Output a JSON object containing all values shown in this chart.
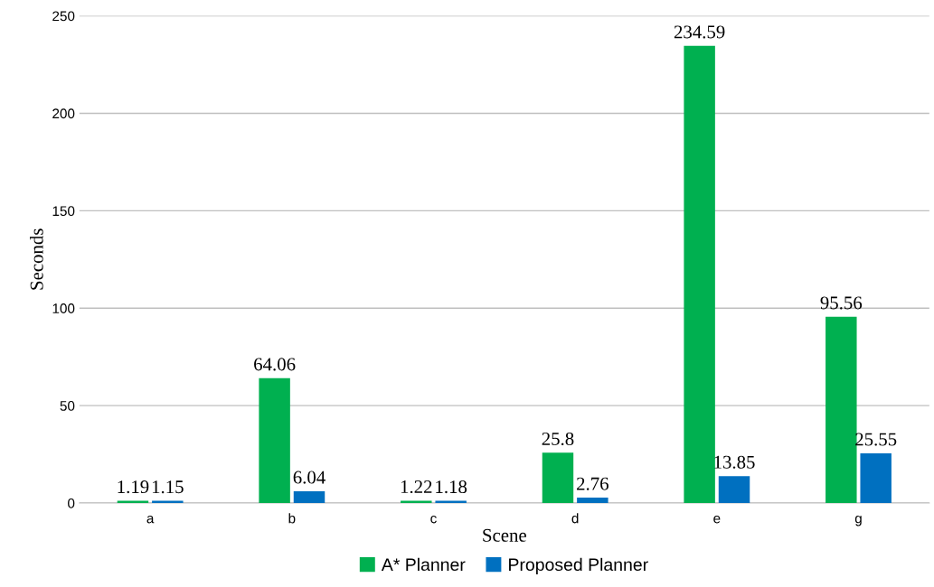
{
  "chart_data": {
    "type": "bar",
    "xlabel": "Scene",
    "ylabel": "Seconds",
    "categories": [
      "a",
      "b",
      "c",
      "d",
      "e",
      "g"
    ],
    "series": [
      {
        "name": "A* Planner",
        "color": "#00b050",
        "values": [
          1.19,
          64.06,
          1.22,
          25.8,
          234.59,
          95.56
        ]
      },
      {
        "name": "Proposed Planner",
        "color": "#0070c0",
        "values": [
          1.15,
          6.04,
          1.18,
          2.76,
          13.85,
          25.55
        ]
      }
    ],
    "ylim": [
      0,
      250
    ],
    "yticks": [
      0,
      50,
      100,
      150,
      200,
      250
    ],
    "grid": "y",
    "legend": "bottom",
    "data_labels": true
  }
}
